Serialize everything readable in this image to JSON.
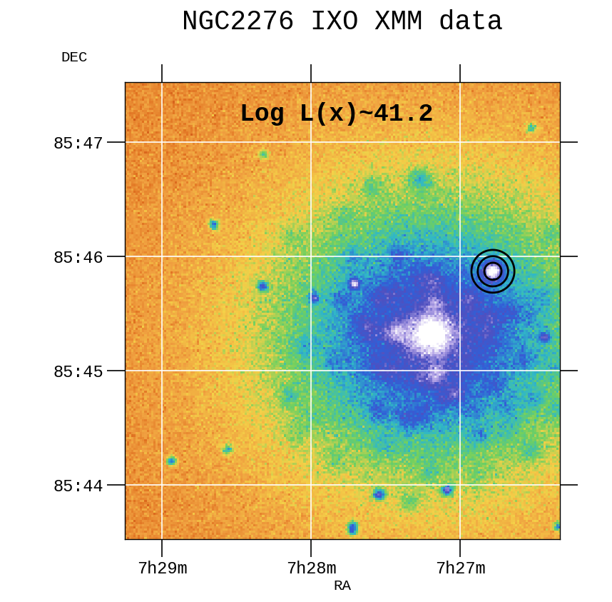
{
  "chart_data": {
    "type": "image",
    "title": "NGC2276 IXO XMM data",
    "xlabel": "RA",
    "ylabel": "DEC",
    "annotation": "Log L(x)~41.2",
    "xlim": [
      29.25,
      26.33
    ],
    "xticks": [
      {
        "value": 29,
        "label": "7h29m"
      },
      {
        "value": 28,
        "label": "7h28m"
      },
      {
        "value": 27,
        "label": "7h27m"
      }
    ],
    "ylim": [
      43.52,
      47.53
    ],
    "yticks": [
      {
        "value": 44,
        "label": "85:44"
      },
      {
        "value": 45,
        "label": "85:45"
      },
      {
        "value": 46,
        "label": "85:46"
      },
      {
        "value": 47,
        "label": "85:47"
      }
    ],
    "galaxy_center": [
      27.19,
      45.31
    ],
    "ixo_position": [
      26.78,
      45.87
    ],
    "grid": true
  }
}
